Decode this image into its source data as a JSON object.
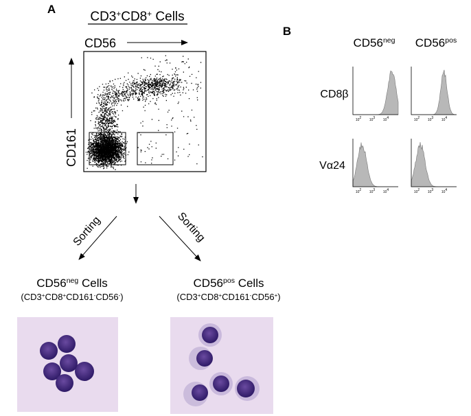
{
  "panel_a": {
    "label": "A",
    "title": [
      {
        "t": "CD3"
      },
      {
        "t": "+",
        "sup": true
      },
      {
        "t": "CD8"
      },
      {
        "t": "+",
        "sup": true
      },
      {
        "t": " Cells"
      }
    ],
    "x_axis": "CD56",
    "y_axis": "CD161",
    "sorting": [
      "Sorting",
      "Sorting"
    ],
    "populations": [
      {
        "name": [
          {
            "t": "CD56"
          },
          {
            "t": "neg",
            "sup": true
          },
          {
            "t": " Cells"
          }
        ],
        "phenotype": [
          {
            "t": "(CD3"
          },
          {
            "t": "+",
            "sup": true
          },
          {
            "t": "CD8"
          },
          {
            "t": "+",
            "sup": true
          },
          {
            "t": "CD161"
          },
          {
            "t": "-",
            "sup": true
          },
          {
            "t": "CD56"
          },
          {
            "t": "-",
            "sup": true
          },
          {
            "t": ")"
          }
        ]
      },
      {
        "name": [
          {
            "t": "CD56"
          },
          {
            "t": "pos",
            "sup": true
          },
          {
            "t": " Cells"
          }
        ],
        "phenotype": [
          {
            "t": "(CD3"
          },
          {
            "t": "+",
            "sup": true
          },
          {
            "t": "CD8"
          },
          {
            "t": "+",
            "sup": true
          },
          {
            "t": "CD161"
          },
          {
            "t": "-",
            "sup": true
          },
          {
            "t": "CD56"
          },
          {
            "t": "+",
            "sup": true
          },
          {
            "t": ")"
          }
        ]
      }
    ]
  },
  "panel_b": {
    "label": "B",
    "columns": [
      [
        {
          "t": "CD56"
        },
        {
          "t": "neg",
          "sup": true
        }
      ],
      [
        {
          "t": "CD56"
        },
        {
          "t": "pos",
          "sup": true
        }
      ]
    ],
    "rows": [
      "CD8β",
      "Vα24"
    ],
    "x_ticks": [
      [
        {
          "t": "10"
        },
        {
          "t": "2",
          "sup": true
        }
      ],
      [
        {
          "t": "10"
        },
        {
          "t": "3",
          "sup": true
        }
      ],
      [
        {
          "t": "10"
        },
        {
          "t": "4",
          "sup": true
        }
      ]
    ]
  }
}
